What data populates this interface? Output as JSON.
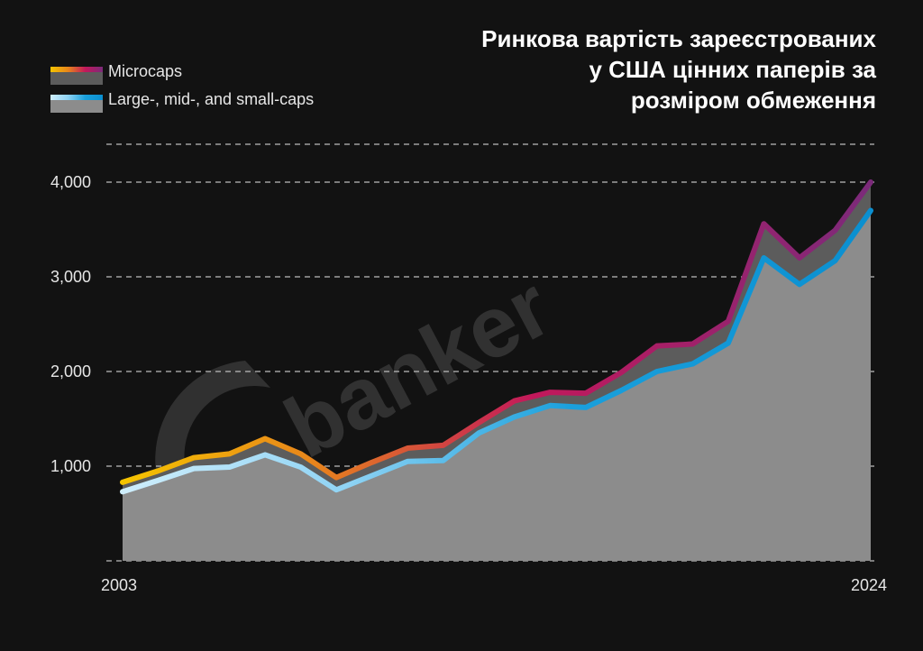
{
  "title_lines": [
    "Ринкова вартість зареєстрованих",
    "у США цінних паперів за",
    "розміром обмеження"
  ],
  "legend": [
    {
      "label": "Microcaps",
      "gradient": [
        "#f5c400",
        "#e8861b",
        "#c2185b",
        "#7b2a7a"
      ],
      "area_color": "#5c5c5c"
    },
    {
      "label": "Large-, mid-, and small-caps",
      "gradient": [
        "#cfeefc",
        "#8fd3f4",
        "#1aa0dc",
        "#0a8fd0"
      ],
      "area_color": "#8c8c8c"
    }
  ],
  "watermark": "banker",
  "chart_data": {
    "type": "area",
    "title": "Ринкова вартість зареєстрованих у США цінних паперів за розміром обмеження",
    "x": [
      2003,
      2004,
      2005,
      2006,
      2007,
      2008,
      2009,
      2010,
      2011,
      2012,
      2013,
      2014,
      2015,
      2016,
      2017,
      2018,
      2019,
      2020,
      2021,
      2022,
      2023,
      2024
    ],
    "x_tick_labels": [
      "2003",
      "2024"
    ],
    "y_tick_labels": [
      "1,000",
      "2,000",
      "3,000",
      "4,000"
    ],
    "y_ticks": [
      1000,
      2000,
      3000,
      4000
    ],
    "ylim": [
      0,
      4400
    ],
    "grid": true,
    "series": [
      {
        "name": "Large-, mid-, and small-caps",
        "values": [
          730,
          850,
          975,
          990,
          1120,
          990,
          750,
          900,
          1050,
          1060,
          1350,
          1520,
          1640,
          1620,
          1800,
          2000,
          2080,
          2300,
          3200,
          2920,
          3170,
          3700
        ]
      },
      {
        "name": "Microcaps",
        "values": [
          830,
          950,
          1090,
          1130,
          1290,
          1130,
          880,
          1040,
          1190,
          1220,
          1460,
          1690,
          1780,
          1770,
          1990,
          2270,
          2290,
          2530,
          3560,
          3200,
          3490,
          4000
        ]
      }
    ]
  }
}
